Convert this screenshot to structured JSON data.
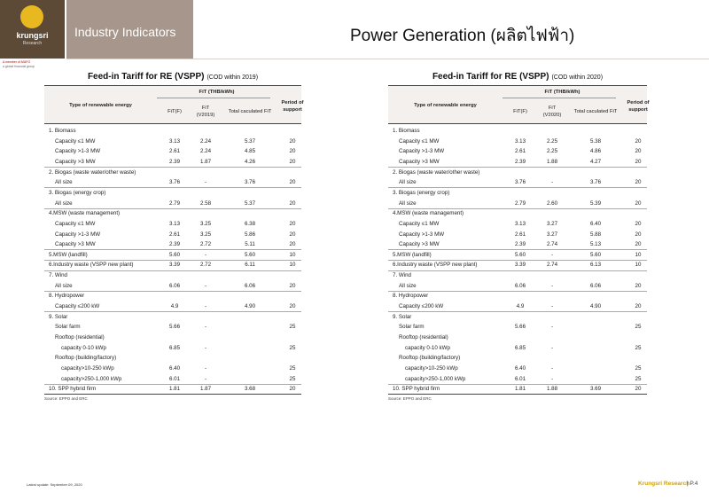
{
  "header": {
    "logo": {
      "name": "krungsri",
      "subname": "Research",
      "member": "A member of MUFG",
      "group": "a global financial group"
    },
    "section": "Industry Indicators",
    "title": "Power Generation (ผลิตไฟฟ้า)"
  },
  "tables": [
    {
      "title": "Feed-in Tariff for RE (VSPP)",
      "title_note": "(COD within 2019)",
      "columns": {
        "type": "Type of renewable energy",
        "fit_group": "FiT (THB/kWh)",
        "fit_f": "FiT(F)",
        "fit_v": "FiT (V2019)",
        "total": "Total caculated FiT",
        "period": "Period of support"
      },
      "rows": [
        {
          "label": "1. Biomass",
          "items": [
            {
              "label": "Capacity ≤1 MW",
              "fit_f": "3.13",
              "fit_v": "2.24",
              "total": "5.37",
              "period": "20"
            },
            {
              "label": "Capacity >1-3 MW",
              "fit_f": "2.61",
              "fit_v": "2.24",
              "total": "4.85",
              "period": "20"
            },
            {
              "label": "Capacity >3 MW",
              "fit_f": "2.39",
              "fit_v": "1.87",
              "total": "4.26",
              "period": "20"
            }
          ]
        },
        {
          "label": "2. Biogas (waste water/other waste)",
          "items": [
            {
              "label": "All size",
              "fit_f": "3.76",
              "fit_v": "-",
              "total": "3.76",
              "period": "20"
            }
          ]
        },
        {
          "label": "3. Biogas (energy crop)",
          "items": [
            {
              "label": "All size",
              "fit_f": "2.79",
              "fit_v": "2.58",
              "total": "5.37",
              "period": "20"
            }
          ]
        },
        {
          "label": "4.MSW (waste management)",
          "items": [
            {
              "label": "Capacity ≤1 MW",
              "fit_f": "3.13",
              "fit_v": "3.25",
              "total": "6.38",
              "period": "20"
            },
            {
              "label": "Capacity >1-3 MW",
              "fit_f": "2.61",
              "fit_v": "3.25",
              "total": "5.86",
              "period": "20"
            },
            {
              "label": "Capacity >3 MW",
              "fit_f": "2.39",
              "fit_v": "2.72",
              "total": "5.11",
              "period": "20"
            }
          ]
        },
        {
          "label": "5.MSW (landfill)",
          "fit_f": "5.60",
          "fit_v": "-",
          "total": "5.60",
          "period": "10"
        },
        {
          "label": "6.Industry waste (VSPP new plant)",
          "fit_f": "3.39",
          "fit_v": "2.72",
          "total": "6.11",
          "period": "10"
        },
        {
          "label": "7. Wind",
          "items": [
            {
              "label": "All size",
              "fit_f": "6.06",
              "fit_v": "-",
              "total": "6.06",
              "period": "20"
            }
          ]
        },
        {
          "label": "8. Hydropower",
          "items": [
            {
              "label": "Capacity ≤200 kW",
              "fit_f": "4.9",
              "fit_v": "-",
              "total": "4.90",
              "period": "20"
            }
          ]
        },
        {
          "label": "9. Solar",
          "items": [
            {
              "label": "Solar farm",
              "fit_f": "5.66",
              "fit_v": "-",
              "period": "25"
            },
            {
              "label": "Rooftop  (residential)",
              "items": [
                {
                  "label": "capacity 0-10 kWp",
                  "fit_f": "6.85",
                  "fit_v": "-",
                  "period": "25"
                }
              ]
            },
            {
              "label": "Rooftop  (building/factory)",
              "items": [
                {
                  "label": "capacity>10-250 kWp",
                  "fit_f": "6.40",
                  "fit_v": "-",
                  "period": "25"
                },
                {
                  "label": "capacity>250-1,000 kWp",
                  "fit_f": "6.01",
                  "fit_v": "-",
                  "period": "25"
                }
              ]
            }
          ]
        },
        {
          "label": "10. SPP hybrid firm",
          "fit_f": "1.81",
          "fit_v": "1.87",
          "total": "3.68",
          "period": "20"
        }
      ],
      "source": "Source: EPPO and ERC"
    },
    {
      "title": "Feed-in Tariff for RE (VSPP)",
      "title_note": "(COD within 2020)",
      "columns": {
        "type": "Type of renewable energy",
        "fit_group": "FiT (THB/kWh)",
        "fit_f": "FiT(F)",
        "fit_v": "FiT (V2020)",
        "total": "Total caculated FiT",
        "period": "Period of support"
      },
      "rows": [
        {
          "label": "1. Biomass",
          "items": [
            {
              "label": "Capacity ≤1 MW",
              "fit_f": "3.13",
              "fit_v": "2.25",
              "total": "5.38",
              "period": "20"
            },
            {
              "label": "Capacity >1-3 MW",
              "fit_f": "2.61",
              "fit_v": "2.25",
              "total": "4.86",
              "period": "20"
            },
            {
              "label": "Capacity >3 MW",
              "fit_f": "2.39",
              "fit_v": "1.88",
              "total": "4.27",
              "period": "20"
            }
          ]
        },
        {
          "label": "2. Biogas (waste water/other waste)",
          "items": [
            {
              "label": "All size",
              "fit_f": "3.76",
              "fit_v": "-",
              "total": "3.76",
              "period": "20"
            }
          ]
        },
        {
          "label": "3. Biogas (energy crop)",
          "items": [
            {
              "label": "All size",
              "fit_f": "2.79",
              "fit_v": "2.60",
              "total": "5.39",
              "period": "20"
            }
          ]
        },
        {
          "label": "4.MSW (waste management)",
          "items": [
            {
              "label": "Capacity ≤1 MW",
              "fit_f": "3.13",
              "fit_v": "3.27",
              "total": "6.40",
              "period": "20"
            },
            {
              "label": "Capacity >1-3 MW",
              "fit_f": "2.61",
              "fit_v": "3.27",
              "total": "5.88",
              "period": "20"
            },
            {
              "label": "Capacity >3 MW",
              "fit_f": "2.39",
              "fit_v": "2.74",
              "total": "5.13",
              "period": "20"
            }
          ]
        },
        {
          "label": "5.MSW (landfill)",
          "fit_f": "5.60",
          "fit_v": "-",
          "total": "5.60",
          "period": "10"
        },
        {
          "label": "6.Industry waste (VSPP new plant)",
          "fit_f": "3.39",
          "fit_v": "2.74",
          "total": "6.13",
          "period": "10"
        },
        {
          "label": "7. Wind",
          "items": [
            {
              "label": "All size",
              "fit_f": "6.06",
              "fit_v": "-",
              "total": "6.06",
              "period": "20"
            }
          ]
        },
        {
          "label": "8. Hydropower",
          "items": [
            {
              "label": "Capacity ≤200 kW",
              "fit_f": "4.9",
              "fit_v": "-",
              "total": "4.90",
              "period": "20"
            }
          ]
        },
        {
          "label": "9. Solar",
          "items": [
            {
              "label": "Solar farm",
              "fit_f": "5.66",
              "fit_v": "-",
              "period": "25"
            },
            {
              "label": "Rooftop  (residential)",
              "items": [
                {
                  "label": "capacity 0-10 kWp",
                  "fit_f": "6.85",
                  "fit_v": "-",
                  "period": "25"
                }
              ]
            },
            {
              "label": "Rooftop  (building/factory)",
              "items": [
                {
                  "label": "capacity>10-250 kWp",
                  "fit_f": "6.40",
                  "fit_v": "-",
                  "period": "25"
                },
                {
                  "label": "capacity>250-1,000 kWp",
                  "fit_f": "6.01",
                  "fit_v": "-",
                  "period": "25"
                }
              ]
            }
          ]
        },
        {
          "label": "10. SPP hybrid firm",
          "fit_f": "1.81",
          "fit_v": "1.88",
          "total": "3.69",
          "period": "20"
        }
      ],
      "source": "Source: EPPO and ERC"
    }
  ],
  "footer": {
    "updated": "Latest update: September 09, 2020",
    "brand": "Krungsri Research",
    "page": "| P.4"
  }
}
